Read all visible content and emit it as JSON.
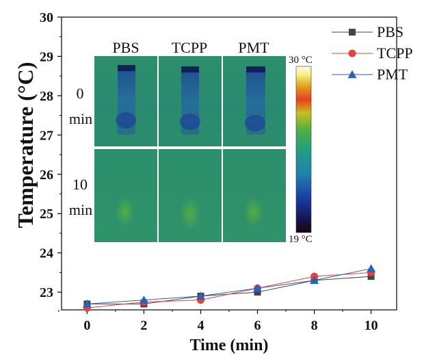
{
  "chart_data": {
    "type": "line",
    "xlabel": "Time (min)",
    "ylabel": "Temperature (°C)",
    "xlim": [
      -0.9,
      10.9
    ],
    "ylim": [
      22.55,
      30
    ],
    "x_ticks": [
      0,
      2,
      4,
      6,
      8,
      10
    ],
    "y_ticks": [
      23,
      24,
      25,
      26,
      27,
      28,
      29,
      30
    ],
    "x": [
      0,
      2,
      4,
      6,
      8,
      10
    ],
    "legend_position": "top-right",
    "series": [
      {
        "name": "PBS",
        "color": "#444444",
        "marker": "square",
        "values": [
          22.7,
          22.7,
          22.9,
          23.0,
          23.3,
          23.4
        ]
      },
      {
        "name": "TCPP",
        "color": "#e8403a",
        "marker": "circle",
        "values": [
          22.6,
          22.75,
          22.8,
          23.1,
          23.4,
          23.5
        ]
      },
      {
        "name": "PMT",
        "color": "#2a62b6",
        "marker": "triangle",
        "values": [
          22.7,
          22.8,
          22.9,
          23.1,
          23.3,
          23.6
        ]
      }
    ]
  },
  "inset": {
    "column_labels": [
      "PBS",
      "TCPP",
      "PMT"
    ],
    "row_labels": [
      {
        "number": "0",
        "unit": "min"
      },
      {
        "number": "10",
        "unit": "min"
      }
    ],
    "colorbar": {
      "max_label": "30 °C",
      "min_label": "19 °C"
    }
  }
}
